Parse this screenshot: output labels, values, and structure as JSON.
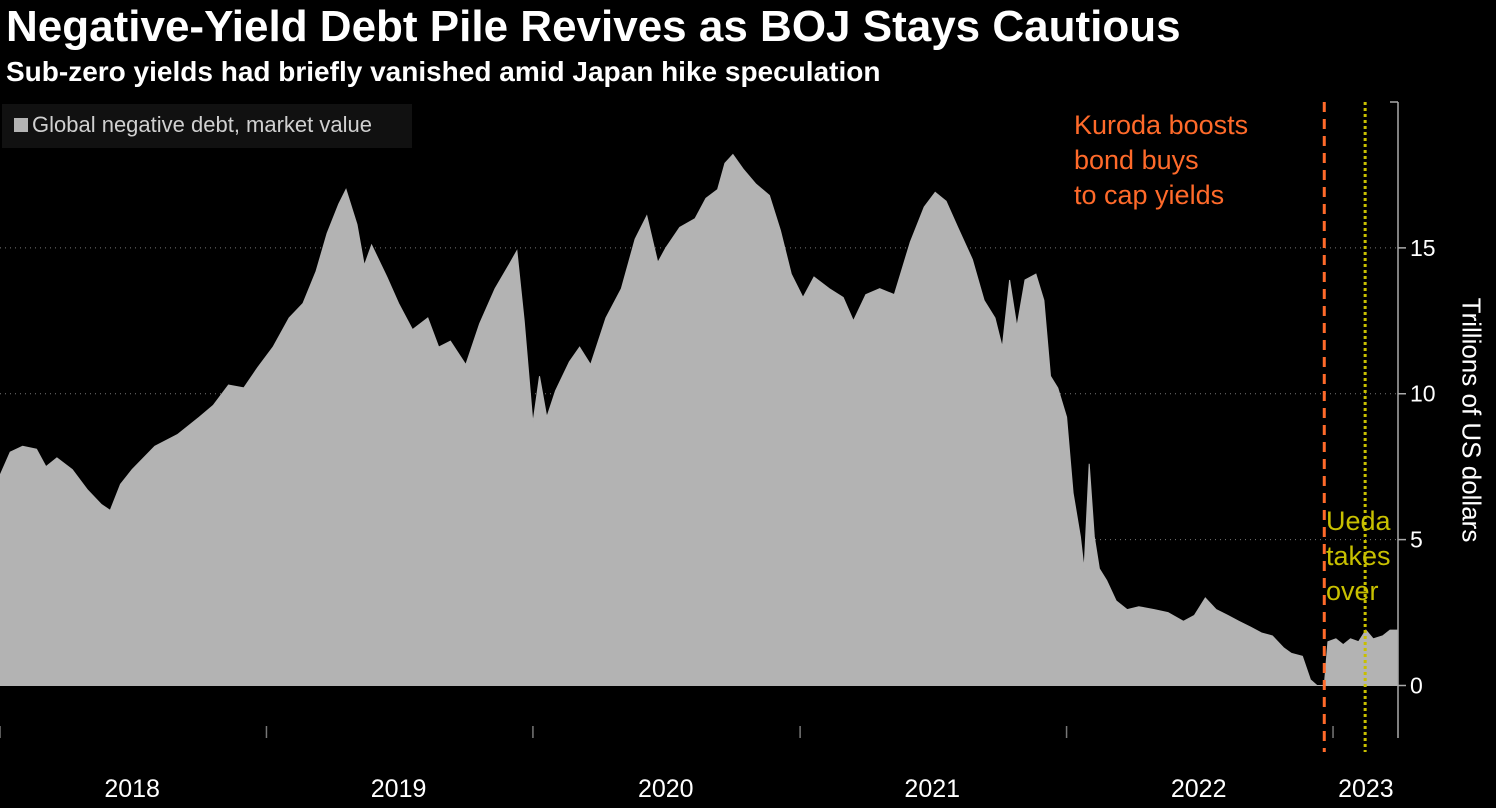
{
  "title": "Negative-Yield Debt Pile Revives as BOJ Stays Cautious",
  "subtitle": "Sub-zero yields had briefly vanished amid Japan hike speculation",
  "colors": {
    "background": "#000000",
    "area": "#b3b3b3",
    "kuroda_line": "#ff6a2a",
    "ueda_line": "#c8c000",
    "axis_text": "#ffffff"
  },
  "chart_data": {
    "type": "area",
    "legend": "Global negative debt, market value",
    "legend_position": "top-left",
    "ylabel": "Trillions of US dollars",
    "ylim": [
      -1.8,
      20
    ],
    "yticks": [
      0,
      5,
      10,
      15
    ],
    "xlim": [
      "2018-01-01",
      "2023-03-31"
    ],
    "xtick_labels": [
      "2018",
      "2019",
      "2020",
      "2021",
      "2022",
      "2023"
    ],
    "xtick_label_dates": [
      "2018-07-01",
      "2019-07-01",
      "2020-07-01",
      "2021-07-01",
      "2022-07-01",
      "2023-02-15"
    ],
    "grid": "horizontal dotted",
    "series": [
      {
        "name": "Global negative debt, market value",
        "points": [
          [
            "2018-01-01",
            7.2
          ],
          [
            "2018-01-15",
            8.0
          ],
          [
            "2018-02-01",
            8.2
          ],
          [
            "2018-02-20",
            8.1
          ],
          [
            "2018-03-05",
            7.5
          ],
          [
            "2018-03-20",
            7.8
          ],
          [
            "2018-04-10",
            7.4
          ],
          [
            "2018-05-01",
            6.7
          ],
          [
            "2018-05-20",
            6.2
          ],
          [
            "2018-06-01",
            6.0
          ],
          [
            "2018-06-15",
            6.9
          ],
          [
            "2018-07-01",
            7.4
          ],
          [
            "2018-08-01",
            8.2
          ],
          [
            "2018-09-01",
            8.6
          ],
          [
            "2018-10-01",
            9.2
          ],
          [
            "2018-10-20",
            9.6
          ],
          [
            "2018-11-10",
            10.3
          ],
          [
            "2018-12-01",
            10.2
          ],
          [
            "2018-12-20",
            10.9
          ],
          [
            "2019-01-10",
            11.6
          ],
          [
            "2019-02-01",
            12.6
          ],
          [
            "2019-02-20",
            13.1
          ],
          [
            "2019-03-10",
            14.2
          ],
          [
            "2019-03-25",
            15.5
          ],
          [
            "2019-04-10",
            16.5
          ],
          [
            "2019-04-20",
            17.0
          ],
          [
            "2019-05-05",
            15.8
          ],
          [
            "2019-05-15",
            14.4
          ],
          [
            "2019-05-25",
            15.1
          ],
          [
            "2019-06-15",
            14.0
          ],
          [
            "2019-07-01",
            13.1
          ],
          [
            "2019-07-20",
            12.2
          ],
          [
            "2019-08-10",
            12.6
          ],
          [
            "2019-08-25",
            11.6
          ],
          [
            "2019-09-10",
            11.8
          ],
          [
            "2019-10-01",
            11.0
          ],
          [
            "2019-10-20",
            12.4
          ],
          [
            "2019-11-10",
            13.6
          ],
          [
            "2019-12-01",
            14.5
          ],
          [
            "2019-12-10",
            14.9
          ],
          [
            "2019-12-20",
            12.5
          ],
          [
            "2020-01-01",
            9.0
          ],
          [
            "2020-01-10",
            10.6
          ],
          [
            "2020-01-20",
            9.2
          ],
          [
            "2020-02-01",
            10.1
          ],
          [
            "2020-02-20",
            11.1
          ],
          [
            "2020-03-05",
            11.6
          ],
          [
            "2020-03-20",
            11.0
          ],
          [
            "2020-04-10",
            12.6
          ],
          [
            "2020-05-01",
            13.6
          ],
          [
            "2020-05-20",
            15.3
          ],
          [
            "2020-06-05",
            16.1
          ],
          [
            "2020-06-20",
            14.5
          ],
          [
            "2020-07-01",
            15.0
          ],
          [
            "2020-07-20",
            15.7
          ],
          [
            "2020-08-10",
            16.0
          ],
          [
            "2020-08-25",
            16.7
          ],
          [
            "2020-09-10",
            17.0
          ],
          [
            "2020-09-20",
            17.9
          ],
          [
            "2020-10-01",
            18.2
          ],
          [
            "2020-10-15",
            17.7
          ],
          [
            "2020-11-01",
            17.2
          ],
          [
            "2020-11-20",
            16.8
          ],
          [
            "2020-12-05",
            15.6
          ],
          [
            "2020-12-20",
            14.1
          ],
          [
            "2021-01-05",
            13.3
          ],
          [
            "2021-01-20",
            14.0
          ],
          [
            "2021-02-10",
            13.6
          ],
          [
            "2021-03-01",
            13.3
          ],
          [
            "2021-03-15",
            12.5
          ],
          [
            "2021-04-01",
            13.4
          ],
          [
            "2021-04-20",
            13.6
          ],
          [
            "2021-05-10",
            13.4
          ],
          [
            "2021-06-01",
            15.2
          ],
          [
            "2021-06-20",
            16.4
          ],
          [
            "2021-07-05",
            16.9
          ],
          [
            "2021-07-20",
            16.6
          ],
          [
            "2021-08-05",
            15.7
          ],
          [
            "2021-08-25",
            14.6
          ],
          [
            "2021-09-10",
            13.2
          ],
          [
            "2021-09-25",
            12.6
          ],
          [
            "2021-10-05",
            11.6
          ],
          [
            "2021-10-15",
            13.9
          ],
          [
            "2021-10-25",
            12.3
          ],
          [
            "2021-11-05",
            13.9
          ],
          [
            "2021-11-20",
            14.1
          ],
          [
            "2021-12-01",
            13.2
          ],
          [
            "2021-12-10",
            10.6
          ],
          [
            "2021-12-20",
            10.2
          ],
          [
            "2022-01-01",
            9.2
          ],
          [
            "2022-01-10",
            6.6
          ],
          [
            "2022-01-20",
            5.1
          ],
          [
            "2022-01-25",
            4.0
          ],
          [
            "2022-02-01",
            7.6
          ],
          [
            "2022-02-08",
            5.1
          ],
          [
            "2022-02-15",
            4.0
          ],
          [
            "2022-02-25",
            3.6
          ],
          [
            "2022-03-10",
            2.9
          ],
          [
            "2022-03-25",
            2.6
          ],
          [
            "2022-04-10",
            2.7
          ],
          [
            "2022-05-01",
            2.6
          ],
          [
            "2022-05-20",
            2.5
          ],
          [
            "2022-06-10",
            2.2
          ],
          [
            "2022-06-25",
            2.4
          ],
          [
            "2022-07-10",
            3.0
          ],
          [
            "2022-07-25",
            2.6
          ],
          [
            "2022-08-10",
            2.4
          ],
          [
            "2022-08-25",
            2.2
          ],
          [
            "2022-09-10",
            2.0
          ],
          [
            "2022-09-25",
            1.8
          ],
          [
            "2022-10-10",
            1.7
          ],
          [
            "2022-10-25",
            1.3
          ],
          [
            "2022-11-05",
            1.1
          ],
          [
            "2022-11-20",
            1.0
          ],
          [
            "2022-12-01",
            0.2
          ],
          [
            "2022-12-10",
            0.0
          ],
          [
            "2022-12-20",
            0.0
          ],
          [
            "2022-12-25",
            1.5
          ],
          [
            "2023-01-05",
            1.6
          ],
          [
            "2023-01-15",
            1.4
          ],
          [
            "2023-01-25",
            1.6
          ],
          [
            "2023-02-05",
            1.5
          ],
          [
            "2023-02-15",
            1.9
          ],
          [
            "2023-02-25",
            1.6
          ],
          [
            "2023-03-10",
            1.7
          ],
          [
            "2023-03-20",
            1.9
          ],
          [
            "2023-03-31",
            1.9
          ]
        ]
      }
    ],
    "annotations": [
      {
        "date": "2022-12-20",
        "label_lines": [
          "Kuroda boosts",
          "bond buys",
          "to cap yields"
        ],
        "color": "#ff6a2a",
        "line_style": "dashed"
      },
      {
        "date": "2023-02-14",
        "label_lines": [
          "Ueda",
          "takes",
          "over"
        ],
        "color": "#c8c000",
        "line_style": "dotted"
      }
    ]
  }
}
